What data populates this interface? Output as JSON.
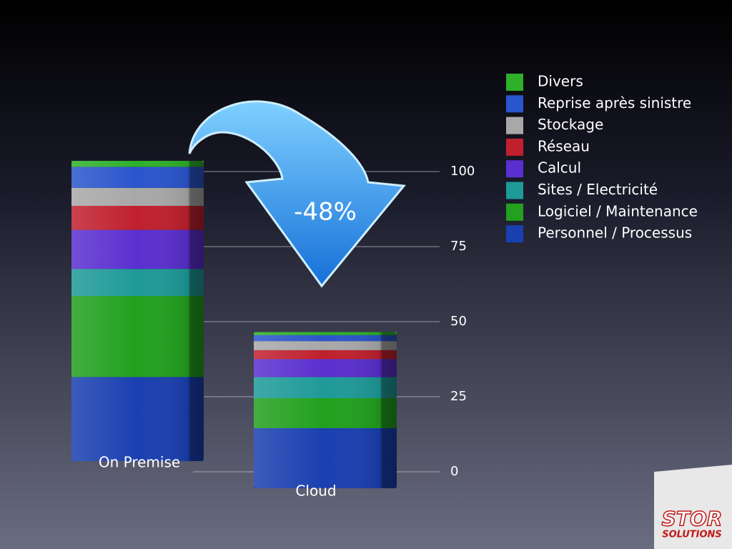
{
  "chart_data": {
    "type": "bar",
    "stacked": true,
    "annotation": "-48%",
    "categories": [
      "On Premise",
      "Cloud"
    ],
    "series": [
      {
        "name": "Personnel / Processus",
        "color": "#1a3fb0",
        "values": [
          28,
          20
        ]
      },
      {
        "name": "Logiciel / Maintenance",
        "color": "#22a01e",
        "values": [
          27,
          10
        ]
      },
      {
        "name": "Sites / Electricité",
        "color": "#1e9a98",
        "values": [
          9,
          7
        ]
      },
      {
        "name": "Calcul",
        "color": "#5a2fcf",
        "values": [
          13,
          6
        ]
      },
      {
        "name": "Réseau",
        "color": "#c0202e",
        "values": [
          8,
          3
        ]
      },
      {
        "name": "Stockage",
        "color": "#a8a8a8",
        "values": [
          6,
          3
        ]
      },
      {
        "name": "Reprise après sinistre",
        "color": "#2a55cc",
        "values": [
          7,
          2
        ]
      },
      {
        "name": "Divers",
        "color": "#2eb02a",
        "values": [
          2,
          1
        ]
      }
    ],
    "ylim": [
      0,
      100
    ],
    "yticks": [
      0,
      25,
      50,
      75,
      100
    ],
    "grid": true
  },
  "logo": {
    "name": "STOR",
    "tagline": "SOLUTIONS"
  }
}
